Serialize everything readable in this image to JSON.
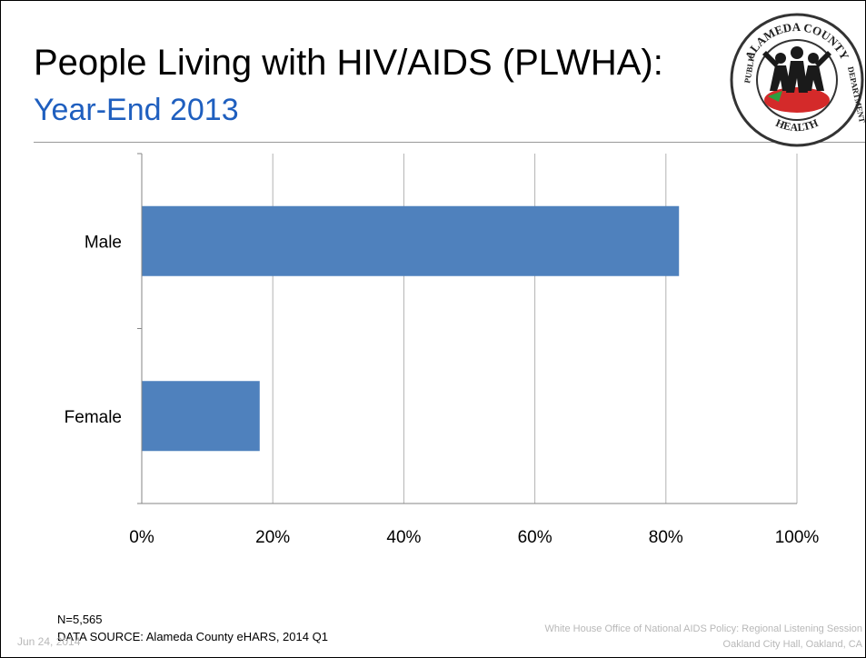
{
  "slide": {
    "title": "People Living with HIV/AIDS (PLWHA):",
    "subtitle": "Year-End 2013",
    "logo": {
      "top_text": "ALAMEDA COUNTY",
      "left_text": "PUBLIC",
      "right_text": "DEPARTMENT",
      "bottom_text": "HEALTH"
    },
    "note_n": "N=5,565",
    "note_source": "DATA SOURCE: Alameda County eHARS, 2014 Q1",
    "date": "Jun 24, 2014",
    "footer_line1": "White House Office of National AIDS Policy:  Regional Listening Session",
    "footer_line2": "Oakland City Hall, Oakland, CA"
  },
  "chart_data": {
    "type": "bar",
    "orientation": "horizontal",
    "categories": [
      "Male",
      "Female"
    ],
    "values": [
      82,
      18
    ],
    "xlim": [
      0,
      100
    ],
    "ticks": [
      0,
      20,
      40,
      60,
      80,
      100
    ],
    "tick_labels": [
      "0%",
      "20%",
      "40%",
      "60%",
      "80%",
      "100%"
    ],
    "grid": true,
    "legend": "none",
    "bar_color": "#4f81bd"
  }
}
